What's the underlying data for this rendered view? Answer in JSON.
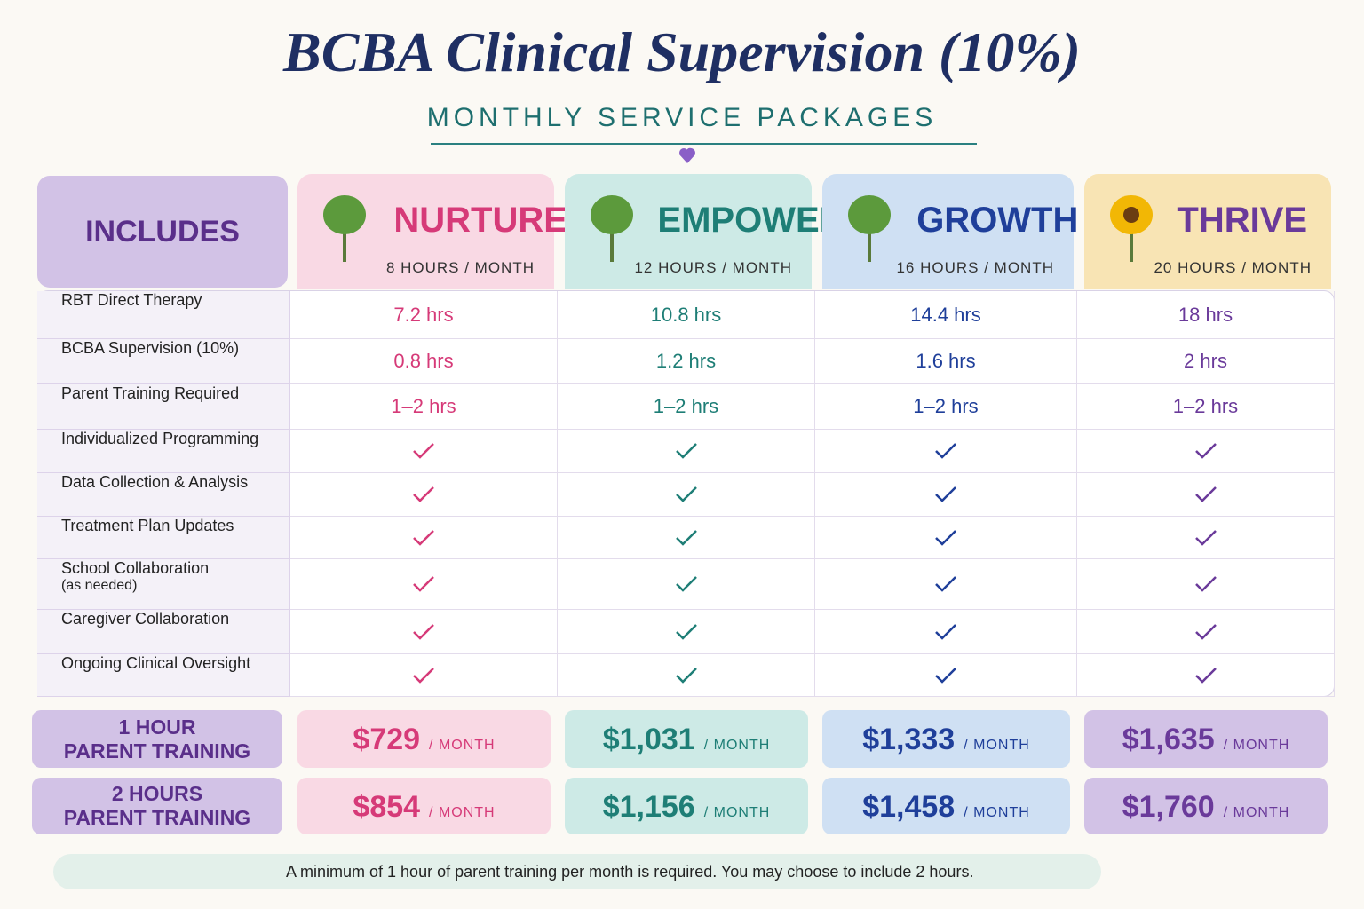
{
  "header": {
    "title": "BCBA Clinical Supervision (10%)",
    "subtitle": "MONTHLY SERVICE PACKAGES"
  },
  "table": {
    "includes": "INCLUDES",
    "includes_color": "#5a2f8a",
    "includes_bg": "#d2c2e6",
    "plans": [
      {
        "name": "NURTURE",
        "hours": "8 HOURS / MONTH",
        "color": "#d63a78",
        "bg": "#f9d9e4"
      },
      {
        "name": "EMPOWERED",
        "hours": "12 HOURS / MONTH",
        "color": "#1e7e76",
        "bg": "#cdeae6"
      },
      {
        "name": "GROWTH",
        "hours": "16 HOURS / MONTH",
        "color": "#1f3f9a",
        "bg": "#cfe0f3"
      },
      {
        "name": "THRIVE",
        "hours": "20 HOURS / MONTH",
        "color": "#6a3a9a",
        "bg": "#f8e4b4"
      }
    ],
    "rows": [
      {
        "label": "RBT Direct Therapy",
        "cells": [
          "7.2 hrs",
          "10.8 hrs",
          "14.4 hrs",
          "18 hrs"
        ]
      },
      {
        "label": "BCBA Supervision (10%)",
        "cells": [
          "0.8 hrs",
          "1.2 hrs",
          "1.6 hrs",
          "2 hrs"
        ]
      },
      {
        "label": "Parent Training Required",
        "cells": [
          "1–2 hrs",
          "1–2 hrs",
          "1–2 hrs",
          "1–2 hrs"
        ]
      },
      {
        "label": "Individualized Programming",
        "check": true
      },
      {
        "label": "Data Collection & Analysis",
        "check": true
      },
      {
        "label": "Treatment Plan Updates",
        "check": true
      },
      {
        "label": "School Collaboration",
        "note": "(as needed)",
        "check": true
      },
      {
        "label": "Caregiver Collaboration",
        "check": true
      },
      {
        "label": "Ongoing Clinical Oversight",
        "check": true
      }
    ]
  },
  "pricing": {
    "per": "/ MONTH",
    "rows": [
      {
        "label": [
          "1 HOUR",
          "PARENT TRAINING"
        ],
        "prices": [
          "$729",
          "$1,031",
          "$1,333",
          "$1,635"
        ]
      },
      {
        "label": [
          "2 HOURS",
          "PARENT TRAINING"
        ],
        "prices": [
          "$854",
          "$1,156",
          "$1,458",
          "$1,760"
        ]
      }
    ]
  },
  "footer": "A minimum of 1 hour of parent training per month is required. You may choose to include 2 hours."
}
